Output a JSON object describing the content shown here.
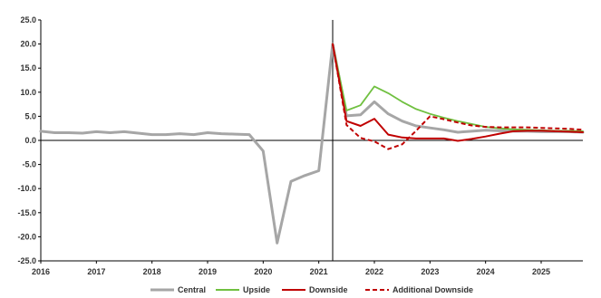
{
  "chart_data": {
    "type": "line",
    "title": "",
    "xlabel": "",
    "ylabel": "",
    "xlim": [
      2016,
      2025.75
    ],
    "ylim": [
      -25,
      25
    ],
    "y_ticks": [
      25,
      20,
      15,
      10,
      5,
      0,
      -5,
      -10,
      -15,
      -20,
      -25
    ],
    "y_tick_labels": [
      "25.0",
      "20.0",
      "15.0",
      "10.0",
      "5.0",
      "0.0",
      "-5.0",
      "-10.0",
      "-15.0",
      "-20.0",
      "-25.0"
    ],
    "x_ticks": [
      2016,
      2017,
      2018,
      2019,
      2020,
      2021,
      2022,
      2023,
      2024,
      2025
    ],
    "x_tick_labels": [
      "2016",
      "2017",
      "2018",
      "2019",
      "2020",
      "2021",
      "2022",
      "2023",
      "2024",
      "2025"
    ],
    "vertical_line_x": 2021.25,
    "grid": false,
    "legend_position": "bottom",
    "series": [
      {
        "name": "Central",
        "color": "#a6a6a6",
        "style": "solid",
        "points": [
          [
            2016.0,
            1.9
          ],
          [
            2016.25,
            1.6
          ],
          [
            2016.5,
            1.6
          ],
          [
            2016.75,
            1.5
          ],
          [
            2017.0,
            1.8
          ],
          [
            2017.25,
            1.6
          ],
          [
            2017.5,
            1.8
          ],
          [
            2017.75,
            1.5
          ],
          [
            2018.0,
            1.2
          ],
          [
            2018.25,
            1.2
          ],
          [
            2018.5,
            1.4
          ],
          [
            2018.75,
            1.2
          ],
          [
            2019.0,
            1.6
          ],
          [
            2019.25,
            1.4
          ],
          [
            2019.5,
            1.3
          ],
          [
            2019.75,
            1.2
          ],
          [
            2020.0,
            -2.2
          ],
          [
            2020.25,
            -21.3
          ],
          [
            2020.5,
            -8.5
          ],
          [
            2020.75,
            -7.3
          ],
          [
            2021.0,
            -6.3
          ],
          [
            2021.25,
            20.0
          ],
          [
            2021.5,
            5.1
          ],
          [
            2021.75,
            5.3
          ],
          [
            2022.0,
            8.0
          ],
          [
            2022.25,
            5.5
          ],
          [
            2022.5,
            4.0
          ],
          [
            2022.75,
            3.0
          ],
          [
            2023.0,
            2.6
          ],
          [
            2023.25,
            2.2
          ],
          [
            2023.5,
            1.7
          ],
          [
            2023.75,
            1.9
          ],
          [
            2024.0,
            2.1
          ],
          [
            2024.25,
            2.0
          ],
          [
            2024.5,
            1.9
          ],
          [
            2024.75,
            1.9
          ],
          [
            2025.0,
            1.8
          ],
          [
            2025.25,
            1.8
          ],
          [
            2025.5,
            1.8
          ],
          [
            2025.75,
            1.7
          ]
        ]
      },
      {
        "name": "Upside",
        "color": "#70c040",
        "style": "solid",
        "points": [
          [
            2021.25,
            20.0
          ],
          [
            2021.5,
            6.2
          ],
          [
            2021.75,
            7.3
          ],
          [
            2022.0,
            11.2
          ],
          [
            2022.25,
            9.8
          ],
          [
            2022.5,
            8.0
          ],
          [
            2022.75,
            6.5
          ],
          [
            2023.0,
            5.5
          ],
          [
            2023.25,
            4.7
          ],
          [
            2023.5,
            4.0
          ],
          [
            2023.75,
            3.4
          ],
          [
            2024.0,
            2.8
          ],
          [
            2024.25,
            2.5
          ],
          [
            2024.5,
            2.3
          ],
          [
            2024.75,
            2.2
          ],
          [
            2025.0,
            2.1
          ],
          [
            2025.25,
            2.0
          ],
          [
            2025.5,
            2.0
          ],
          [
            2025.75,
            1.9
          ]
        ]
      },
      {
        "name": "Downside",
        "color": "#c00000",
        "style": "solid",
        "points": [
          [
            2021.25,
            20.0
          ],
          [
            2021.5,
            4.0
          ],
          [
            2021.75,
            3.0
          ],
          [
            2022.0,
            4.5
          ],
          [
            2022.25,
            1.2
          ],
          [
            2022.5,
            0.6
          ],
          [
            2022.75,
            0.4
          ],
          [
            2023.0,
            0.4
          ],
          [
            2023.25,
            0.4
          ],
          [
            2023.5,
            -0.1
          ],
          [
            2023.75,
            0.3
          ],
          [
            2024.0,
            0.8
          ],
          [
            2024.25,
            1.4
          ],
          [
            2024.5,
            1.9
          ],
          [
            2024.75,
            2.0
          ],
          [
            2025.0,
            2.0
          ],
          [
            2025.25,
            1.9
          ],
          [
            2025.5,
            1.8
          ],
          [
            2025.75,
            1.7
          ]
        ]
      },
      {
        "name": "Additional Downside",
        "color": "#c00000",
        "style": "dashed",
        "points": [
          [
            2021.25,
            20.0
          ],
          [
            2021.5,
            3.2
          ],
          [
            2021.75,
            0.5
          ],
          [
            2022.0,
            -0.2
          ],
          [
            2022.25,
            -1.8
          ],
          [
            2022.5,
            -0.8
          ],
          [
            2022.75,
            2.0
          ],
          [
            2023.0,
            5.0
          ],
          [
            2023.25,
            4.4
          ],
          [
            2023.5,
            3.7
          ],
          [
            2023.75,
            3.1
          ],
          [
            2024.0,
            2.8
          ],
          [
            2024.25,
            2.7
          ],
          [
            2024.5,
            2.7
          ],
          [
            2024.75,
            2.7
          ],
          [
            2025.0,
            2.6
          ],
          [
            2025.25,
            2.5
          ],
          [
            2025.5,
            2.4
          ],
          [
            2025.75,
            2.2
          ]
        ]
      }
    ]
  }
}
